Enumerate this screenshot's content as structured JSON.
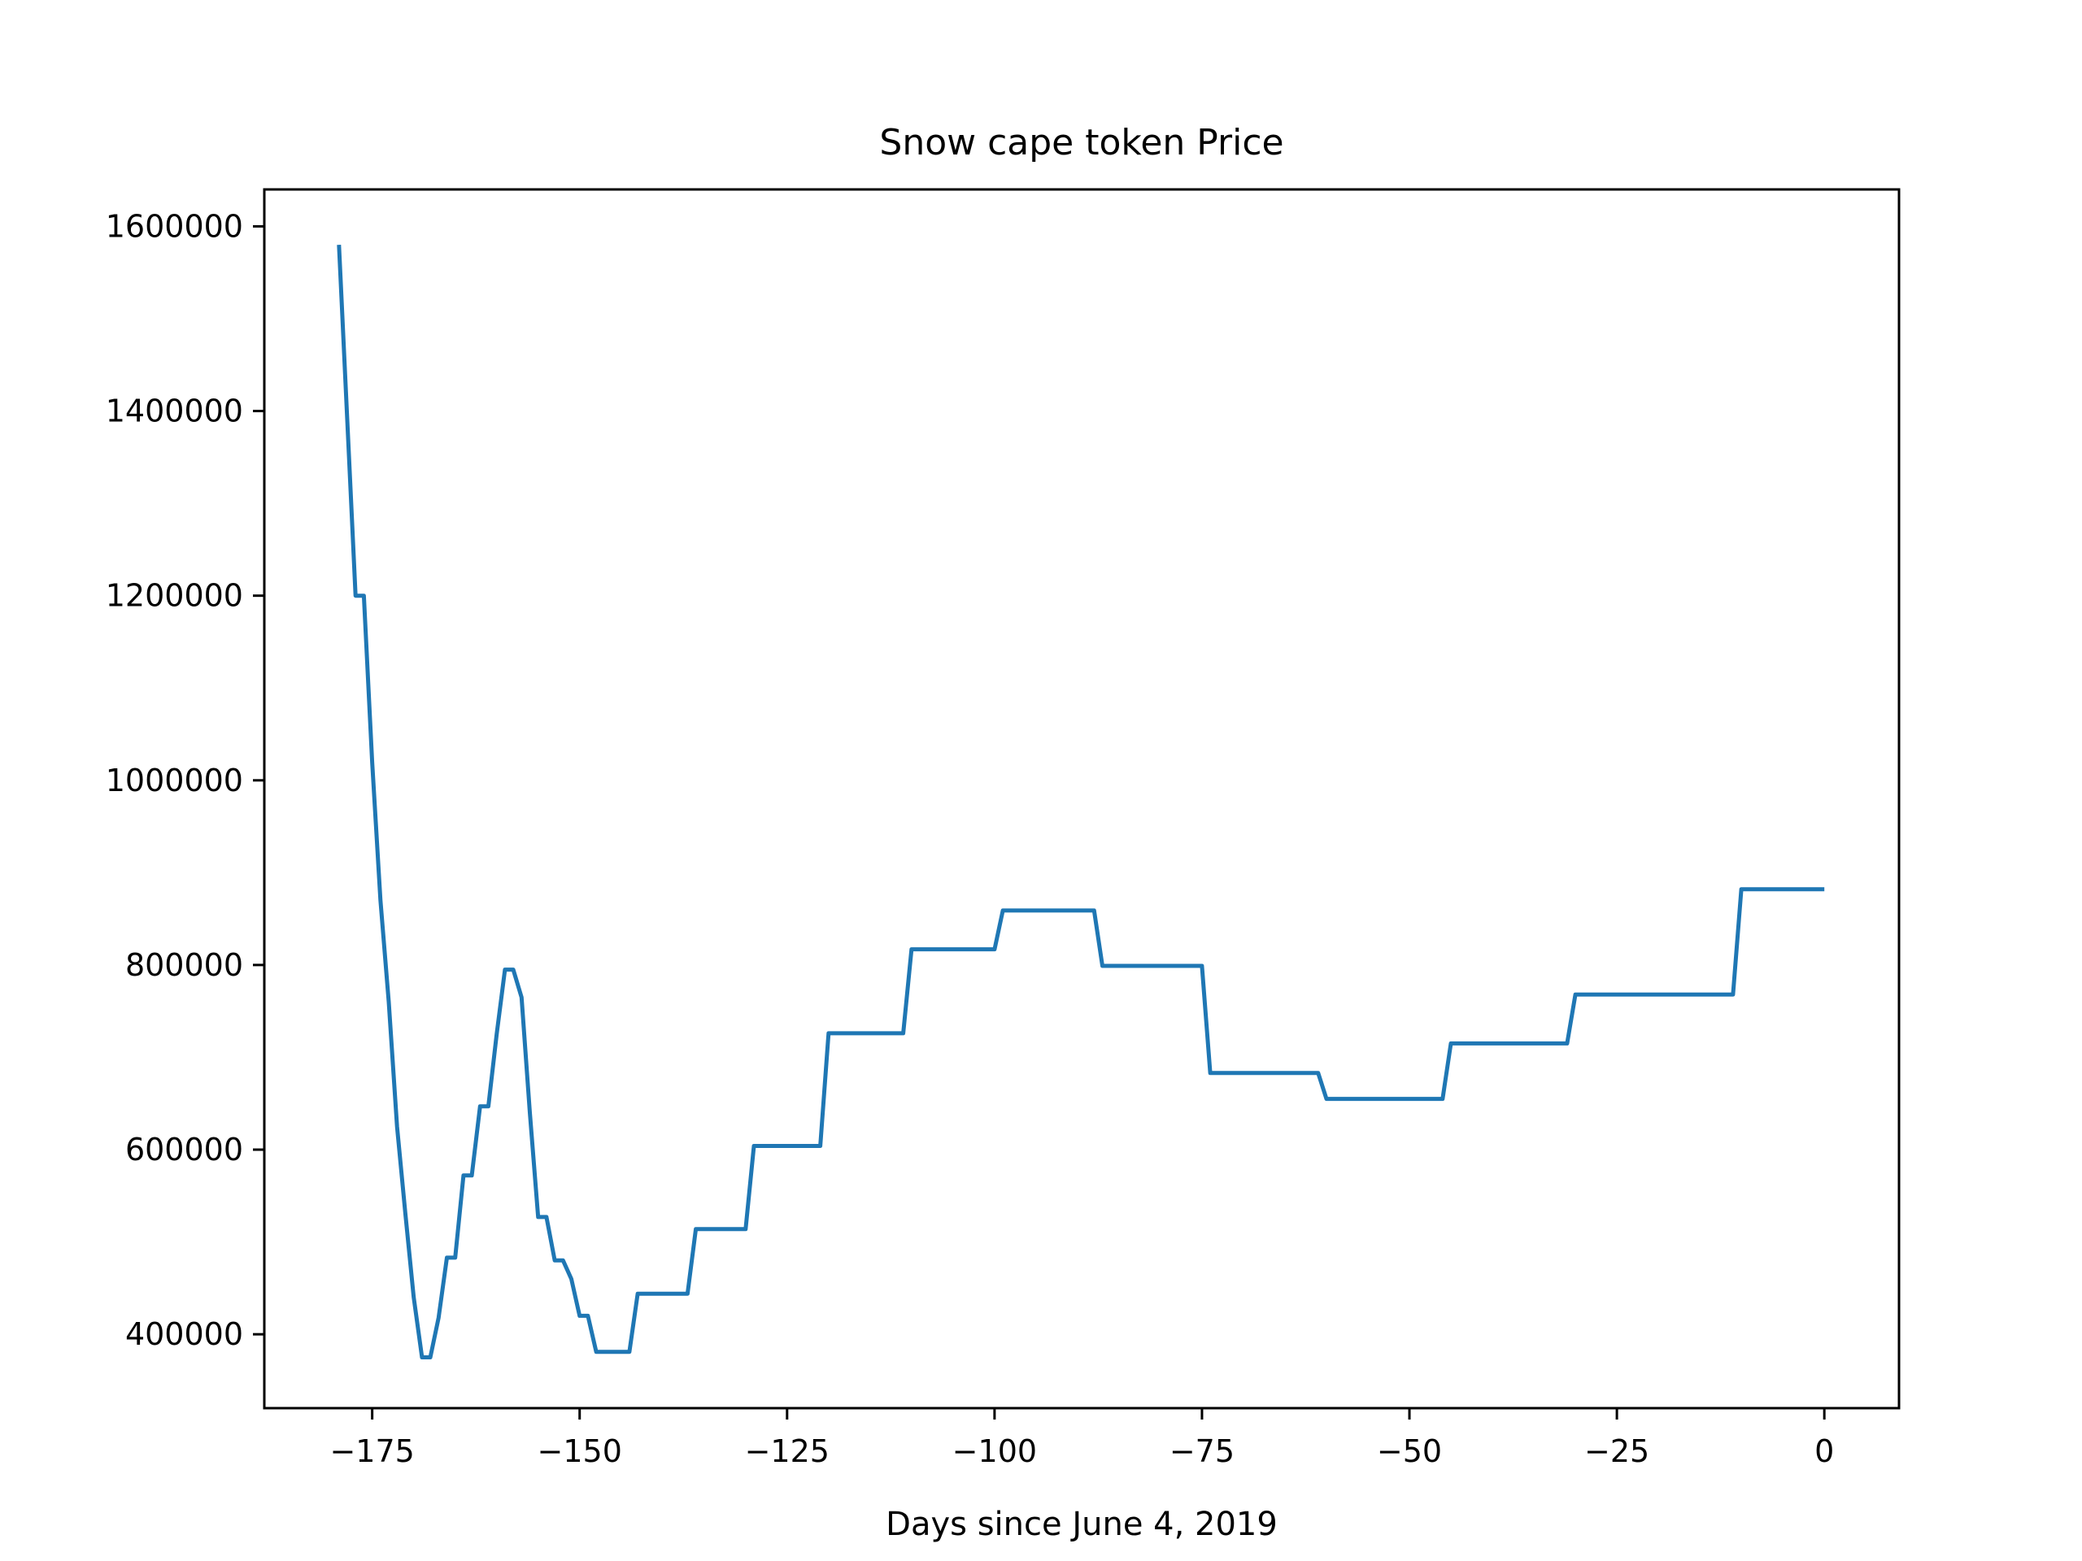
{
  "chart_data": {
    "type": "line",
    "title": "Snow cape token Price",
    "xlabel": "Days since June 4, 2019",
    "ylabel": "",
    "xlim": [
      -188,
      9
    ],
    "ylim": [
      320000,
      1640000
    ],
    "xticks": [
      -175,
      -150,
      -125,
      -100,
      -75,
      -50,
      -25,
      0
    ],
    "xtick_labels": [
      "−175",
      "−150",
      "−125",
      "−100",
      "−75",
      "−50",
      "−25",
      "0"
    ],
    "yticks": [
      400000,
      600000,
      800000,
      1000000,
      1200000,
      1400000,
      1600000
    ],
    "ytick_labels": [
      "400000",
      "600000",
      "800000",
      "1000000",
      "1200000",
      "1400000",
      "1600000"
    ],
    "grid": false,
    "series": [
      {
        "color": "#1f77b4",
        "x": [
          -179,
          -177,
          -176,
          -175,
          -174,
          -173,
          -172,
          -171,
          -170,
          -169,
          -168,
          -167,
          -166,
          -165,
          -164,
          -163,
          -162,
          -161,
          -160,
          -159,
          -158,
          -157,
          -156,
          -155,
          -154,
          -153,
          -152,
          -151,
          -150,
          -149,
          -148,
          -147,
          -146,
          -145,
          -144,
          -143,
          -142,
          -141,
          -140,
          -139,
          -138,
          -137,
          -136,
          -130,
          -129,
          -121,
          -120,
          -111,
          -110,
          -100,
          -99,
          -88,
          -87,
          -75,
          -74,
          -61,
          -60,
          -46,
          -45,
          -31,
          -30,
          -11,
          -10,
          0
        ],
        "y": [
          1580000,
          1200000,
          1200000,
          1020000,
          870000,
          760000,
          625000,
          530000,
          440000,
          375000,
          375000,
          418000,
          483000,
          483000,
          572000,
          572000,
          647000,
          647000,
          725000,
          795000,
          795000,
          765000,
          640000,
          527000,
          527000,
          480000,
          480000,
          460000,
          420000,
          420000,
          381000,
          381000,
          381000,
          381000,
          381000,
          444000,
          444000,
          444000,
          444000,
          444000,
          444000,
          444000,
          514000,
          514000,
          604000,
          604000,
          726000,
          726000,
          817000,
          817000,
          859000,
          859000,
          799000,
          799000,
          683000,
          683000,
          655000,
          655000,
          715000,
          715000,
          768000,
          768000,
          882000,
          882000
        ]
      }
    ]
  }
}
